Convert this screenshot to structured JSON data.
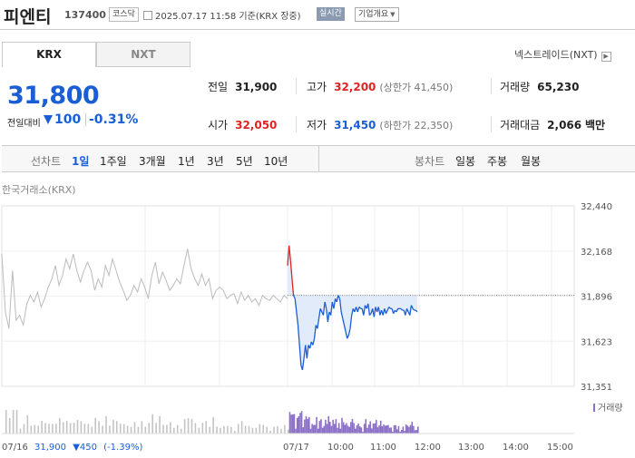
{
  "header": {
    "stock_name": "피엔티",
    "stock_code": "137400",
    "market_badge": "코스닥",
    "base_time": "2025.07.17 11:58 기준(KRX 장중)",
    "realtime_label": "실시간",
    "company_overview_label": "기업개요",
    "company_overview_arrow": "▼"
  },
  "exchange_tabs": [
    {
      "label": "KRX",
      "active": true
    },
    {
      "label": "NXT",
      "active": false
    }
  ],
  "nxt_link": {
    "label": "넥스트레이드(NXT)",
    "arrow": "▶"
  },
  "price": {
    "current": "31,800",
    "change_label": "전일대비",
    "change_value": "100",
    "change_pct": "-0.31%",
    "direction": "down"
  },
  "info": {
    "prev_close": {
      "label": "전일",
      "value": "31,900"
    },
    "high": {
      "label": "고가",
      "value": "32,200",
      "sub": "(상한가 41,450)"
    },
    "volume": {
      "label": "거래량",
      "value": "65,230"
    },
    "open": {
      "label": "시가",
      "value": "32,050"
    },
    "low": {
      "label": "저가",
      "value": "31,450",
      "sub": "(하한가 22,350)"
    },
    "trade_amount": {
      "label": "거래대금",
      "value": "2,066",
      "unit": "백만"
    }
  },
  "period_bar": {
    "line_chart_label": "선차트",
    "line_periods": [
      "1일",
      "1주일",
      "3개월",
      "1년",
      "3년",
      "5년",
      "10년"
    ],
    "active_period": "1일",
    "candle_chart_label": "봉차트",
    "candle_periods": [
      "일봉",
      "주봉",
      "월봉"
    ]
  },
  "chart": {
    "exchange_label": "한국거래소(KRX)",
    "volume_legend": "거래량",
    "prev_day_summary": {
      "date": "07/16",
      "close": "31,900",
      "change": "▼450",
      "pct": "(-1.39%)"
    }
  },
  "colors": {
    "up": "#e02222",
    "down": "#1a5ed5",
    "prev_line": "#bbbbbb",
    "fill": "#dde8f8"
  },
  "chart_data": {
    "type": "line",
    "ylim": [
      31351,
      32440
    ],
    "yticks": [
      "32,440",
      "32,168",
      "31,896",
      "31,623",
      "31,351"
    ],
    "xticks": [
      "07/16",
      "07/17",
      "10:00",
      "11:00",
      "12:00",
      "13:00",
      "14:00",
      "15:00"
    ],
    "reference_price": 31900,
    "series": [
      {
        "values": [
          32150,
          31800,
          31700,
          32050,
          31750,
          31780,
          31720,
          31850,
          31900,
          31860,
          31920,
          31830,
          31880,
          31950,
          32000,
          32080,
          31960,
          32020,
          32120,
          32060,
          32150,
          32050,
          31980,
          32050,
          32100,
          32050,
          31930,
          32000,
          31950,
          32080,
          32020,
          32120,
          32050,
          31980,
          31930,
          31870,
          31900,
          31960,
          31920,
          32000,
          31950,
          31880,
          32020,
          32100,
          31970,
          32040,
          31990,
          31930,
          31960,
          32000,
          31970,
          32080,
          32180,
          32060,
          32000,
          31960,
          32030,
          31960,
          32000,
          31880,
          31930,
          31950,
          31930,
          31880,
          31900,
          31910,
          31850,
          31920,
          31870,
          31900,
          31860,
          31880,
          31840,
          31900,
          31880,
          31870,
          31900,
          31880,
          31860,
          31900,
          31880
        ]
      },
      {
        "values": [
          32080,
          32200,
          32110,
          32000,
          31900,
          31880,
          31800,
          31720,
          31600,
          31480,
          31450,
          31520,
          31600,
          31520,
          31600,
          31580,
          31620,
          31600,
          31640,
          31720,
          31700,
          31760,
          31820,
          31800,
          31780,
          31860,
          31820,
          31740,
          31800,
          31780,
          31860,
          31820,
          31880,
          31860,
          31900,
          31880,
          31800,
          31760,
          31720,
          31680,
          31640,
          31660,
          31700,
          31780,
          31820,
          31800,
          31830,
          31800,
          31830,
          31820,
          31820,
          31780,
          31840,
          31820,
          31850,
          31780,
          31790,
          31820,
          31770,
          31830,
          31800,
          31830,
          31780,
          31810,
          31780,
          31820,
          31790,
          31810,
          31830,
          31820,
          31820,
          31790,
          31810,
          31800,
          31820,
          31820,
          31820,
          31810,
          31810,
          31780,
          31820,
          31800,
          31780,
          31840,
          31820,
          31810,
          31810,
          31800
        ]
      }
    ]
  }
}
